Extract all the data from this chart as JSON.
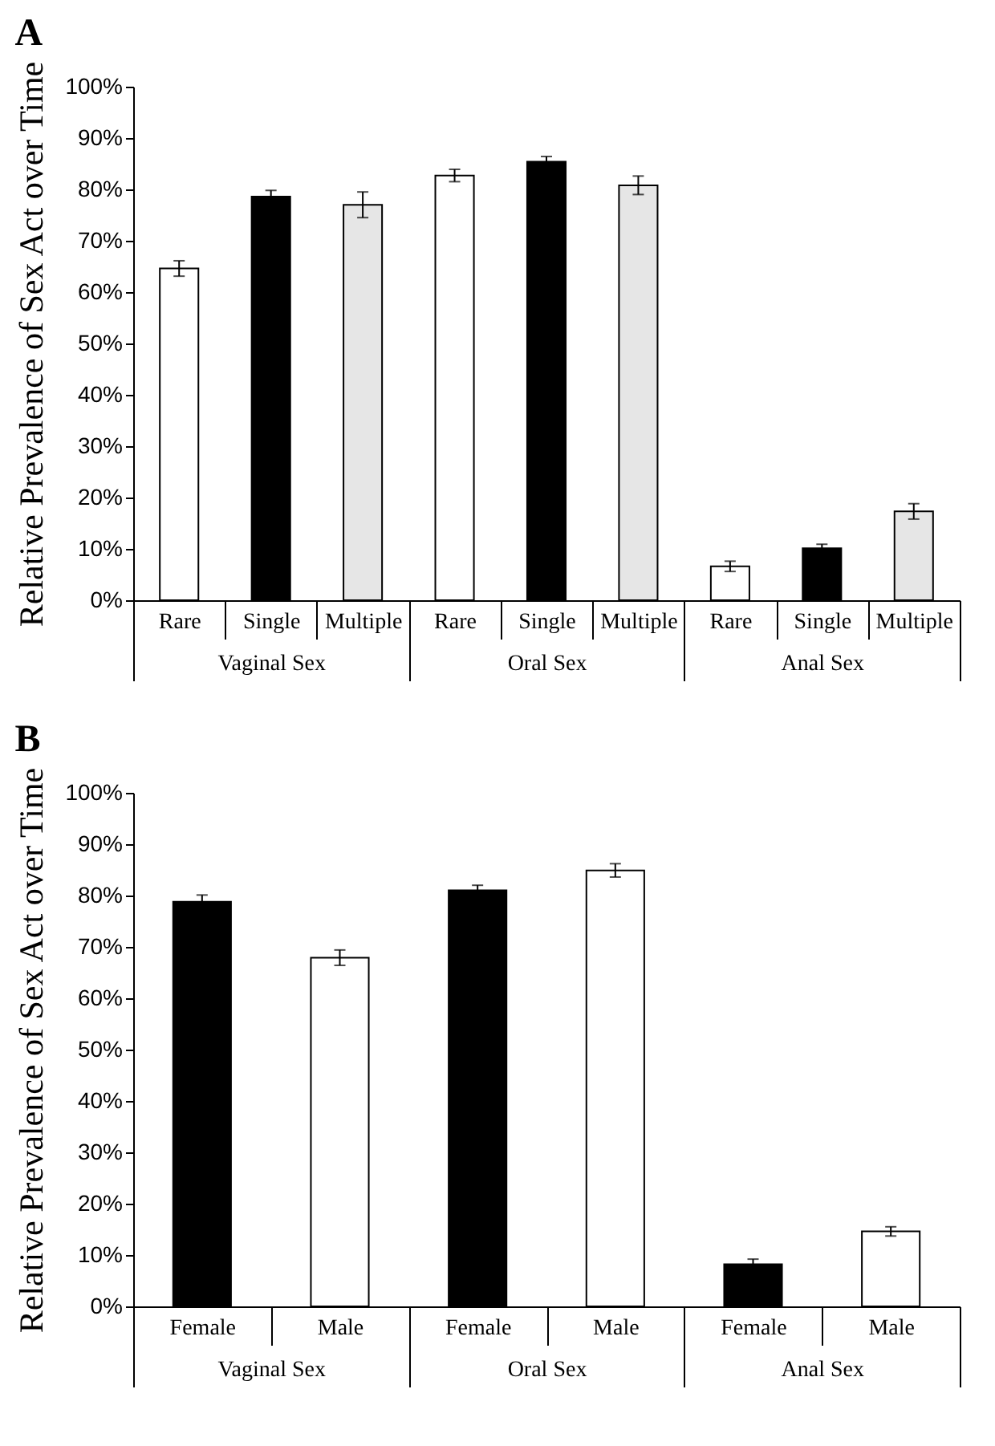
{
  "chart_data": [
    {
      "type": "bar",
      "title": "A",
      "ylabel": "Relative Prevalence of Sex Act over Time",
      "categories": [
        "Rare",
        "Single",
        "Multiple",
        "Rare",
        "Single",
        "Multiple",
        "Rare",
        "Single",
        "Multiple"
      ],
      "values": [
        64.6,
        78.6,
        77.0,
        82.7,
        85.4,
        80.8,
        6.6,
        10.1,
        17.3
      ],
      "errors": [
        1.5,
        1.2,
        2.5,
        1.2,
        1.0,
        1.8,
        1.0,
        0.8,
        1.5
      ],
      "colors": [
        "#ffffff",
        "#000000",
        "#e6e6e6",
        "#ffffff",
        "#000000",
        "#e6e6e6",
        "#ffffff",
        "#000000",
        "#e6e6e6"
      ],
      "annotations": [
        "Vaginal Sex",
        "Oral Sex",
        "Anal Sex"
      ],
      "ylim": [
        0,
        100
      ],
      "yticks": [
        {
          "value": 0,
          "label": "0%"
        },
        {
          "value": 10,
          "label": "10%"
        },
        {
          "value": 20,
          "label": "20%"
        },
        {
          "value": 30,
          "label": "30%"
        },
        {
          "value": 40,
          "label": "40%"
        },
        {
          "value": 50,
          "label": "50%"
        },
        {
          "value": 60,
          "label": "60%"
        },
        {
          "value": 70,
          "label": "70%"
        },
        {
          "value": 80,
          "label": "80%"
        },
        {
          "value": 90,
          "label": "90%"
        },
        {
          "value": 100,
          "label": "100%"
        }
      ]
    },
    {
      "type": "bar",
      "title": "B",
      "ylabel": "Relative Prevalence of Sex Act over Time",
      "categories": [
        "Female",
        "Male",
        "Female",
        "Male",
        "Female",
        "Male"
      ],
      "values": [
        78.8,
        67.9,
        81.0,
        84.9,
        8.2,
        14.6
      ],
      "errors": [
        1.3,
        1.5,
        1.0,
        1.3,
        1.0,
        0.9
      ],
      "colors": [
        "#000000",
        "#ffffff",
        "#000000",
        "#ffffff",
        "#000000",
        "#ffffff"
      ],
      "annotations": [
        "Vaginal Sex",
        "Oral Sex",
        "Anal Sex"
      ],
      "ylim": [
        0,
        100
      ],
      "yticks": [
        {
          "value": 0,
          "label": "0%"
        },
        {
          "value": 10,
          "label": "10%"
        },
        {
          "value": 20,
          "label": "20%"
        },
        {
          "value": 30,
          "label": "30%"
        },
        {
          "value": 40,
          "label": "40%"
        },
        {
          "value": 50,
          "label": "50%"
        },
        {
          "value": 60,
          "label": "60%"
        },
        {
          "value": 70,
          "label": "70%"
        },
        {
          "value": 80,
          "label": "80%"
        },
        {
          "value": 90,
          "label": "90%"
        },
        {
          "value": 100,
          "label": "100%"
        }
      ]
    }
  ]
}
